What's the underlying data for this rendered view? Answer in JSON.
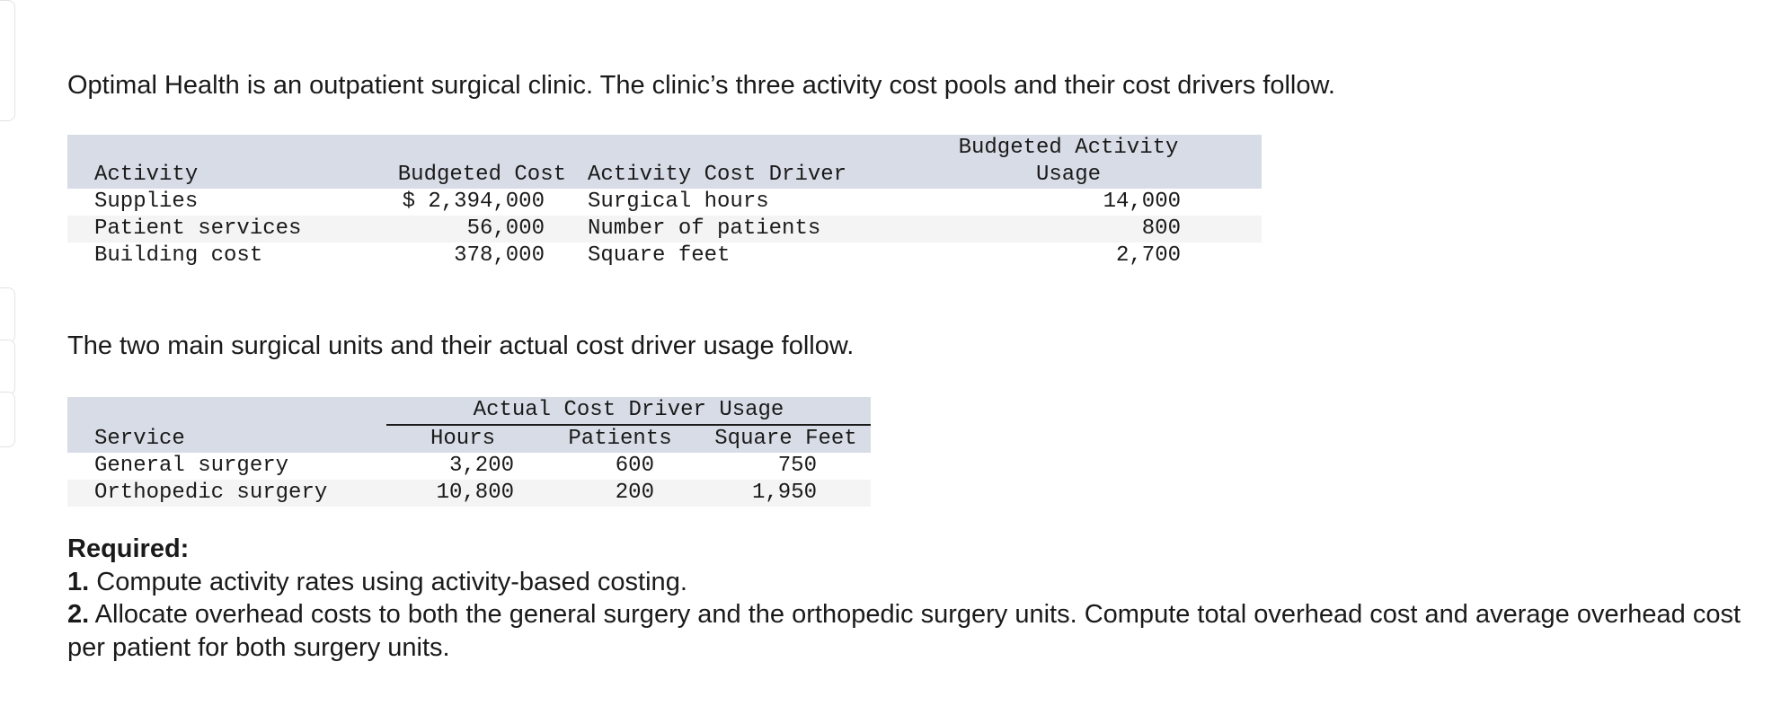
{
  "intro_text": "Optimal Health is an outpatient surgical clinic. The clinic’s three activity cost pools and their cost drivers follow.",
  "activity_table": {
    "headers": {
      "activity": "Activity",
      "budgeted_cost": "Budgeted Cost",
      "driver": "Activity Cost Driver",
      "usage_line1": "Budgeted Activity",
      "usage_line2": "Usage"
    },
    "rows": [
      {
        "activity": "Supplies",
        "cost": "$ 2,394,000",
        "driver": "Surgical hours",
        "usage": "14,000"
      },
      {
        "activity": "Patient services",
        "cost": "56,000",
        "driver": "Number of patients",
        "usage": "800"
      },
      {
        "activity": "Building cost",
        "cost": "378,000",
        "driver": "Square feet",
        "usage": "2,700"
      }
    ]
  },
  "second_text": "The two main surgical units and their actual cost driver usage follow.",
  "usage_table": {
    "group_header": "Actual Cost Driver Usage",
    "headers": {
      "service": "Service",
      "hours": "Hours",
      "patients": "Patients",
      "sqft": "Square Feet"
    },
    "rows": [
      {
        "service": "General surgery",
        "hours": "3,200",
        "patients": "600",
        "sqft": "750"
      },
      {
        "service": "Orthopedic surgery",
        "hours": "10,800",
        "patients": "200",
        "sqft": "1,950"
      }
    ]
  },
  "required": {
    "title": "Required:",
    "items": [
      {
        "num": "1.",
        "text": "Compute activity rates using activity-based costing."
      },
      {
        "num": "2.",
        "text": "Allocate overhead costs to both the general surgery and the orthopedic surgery units. Compute total overhead cost and average overhead cost per patient for both surgery units."
      }
    ]
  }
}
